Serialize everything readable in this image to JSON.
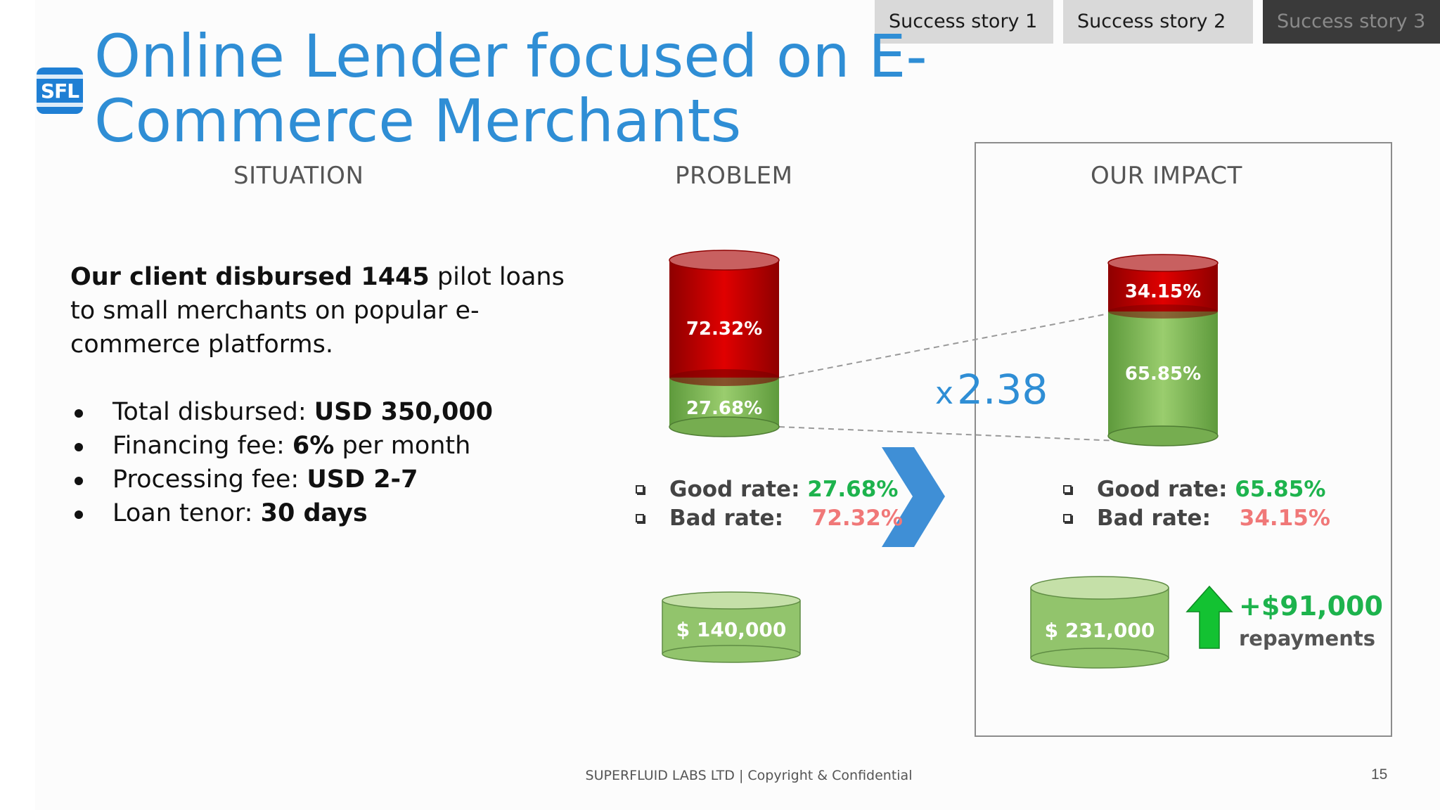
{
  "tabs": [
    {
      "label": "Success story 1",
      "active": false
    },
    {
      "label": "Success story  2",
      "active": false
    },
    {
      "label": "Success story 3",
      "active": true
    }
  ],
  "logo_text": "SFL",
  "title": "Online Lender focused on E-Commerce Merchants",
  "sections": {
    "situation": "SITUATION",
    "problem": "PROBLEM",
    "impact": "OUR IMPACT"
  },
  "situation": {
    "intro_bold": "Our client disbursed 1445",
    "intro_rest": " pilot loans to small merchants on popular e-commerce platforms.",
    "bullets": [
      {
        "label": "Total disbursed: ",
        "value": "USD 350,000",
        "suffix": ""
      },
      {
        "label": "Financing fee: ",
        "value": "6%",
        "suffix": " per month"
      },
      {
        "label": "Processing fee: ",
        "value": "USD 2-7",
        "suffix": ""
      },
      {
        "label": "Loan tenor: ",
        "value": "30 days",
        "suffix": ""
      }
    ]
  },
  "problem": {
    "bad_pct_label": "72.32%",
    "good_pct_label": "27.68%",
    "bad_rate": 72.32,
    "good_rate": 27.68,
    "good_rate_label": "Good rate: ",
    "bad_rate_label": "Bad rate: ",
    "repayment": "$ 140,000"
  },
  "impact": {
    "bad_pct_label": "34.15%",
    "good_pct_label": "65.85%",
    "bad_rate": 34.15,
    "good_rate": 65.85,
    "good_rate_label": "Good rate: ",
    "bad_rate_label": "Bad rate: ",
    "repayment": "$ 231,000"
  },
  "multiplier": {
    "x": "x",
    "value": "2.38"
  },
  "increase": {
    "amount": "+$91,000",
    "label": "repayments"
  },
  "footer": "SUPERFLUID LABS LTD | Copyright & Confidential",
  "page_number": "15",
  "colors": {
    "accent": "#2f8ed5",
    "good": "#1db34d",
    "bad": "#f07878",
    "red_bar": "#c00000",
    "green_bar": "#8cc063"
  }
}
